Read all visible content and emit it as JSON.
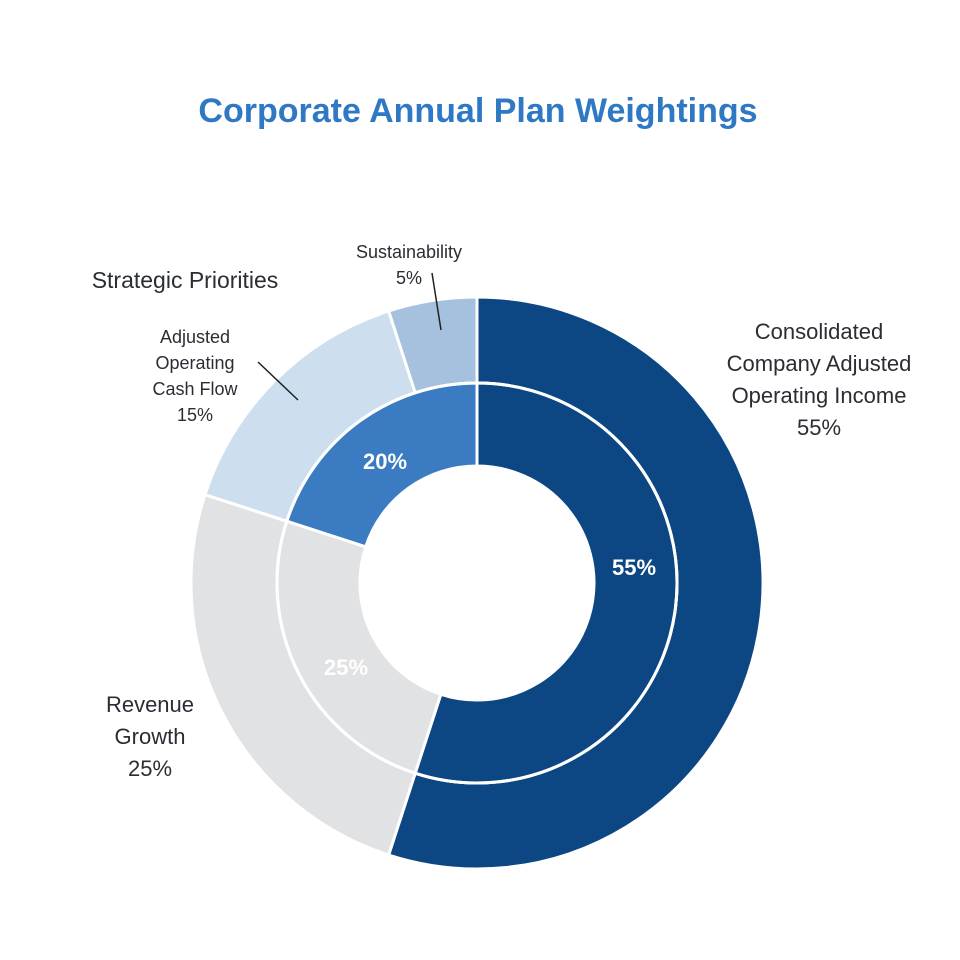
{
  "chart_data": {
    "type": "pie",
    "title": "Corporate Annual Plan Weightings",
    "group_label": "Strategic Priorities",
    "outer_ring": [
      {
        "name": "Consolidated Company Adjusted Operating Income",
        "label_lines": [
          "Consolidated",
          "Company Adjusted",
          "Operating Income"
        ],
        "value": 55,
        "value_label": "55%",
        "color": "#0c4784"
      },
      {
        "name": "Revenue Growth",
        "label_lines": [
          "Revenue",
          "Growth"
        ],
        "value": 25,
        "value_label": "25%",
        "color": "#e1e2e4"
      },
      {
        "name": "Adjusted Operating Cash Flow",
        "label_lines": [
          "Adjusted",
          "Operating",
          "Cash Flow"
        ],
        "value": 15,
        "value_label": "15%",
        "color": "#cddeee"
      },
      {
        "name": "Sustainability",
        "label_lines": [
          "Sustainability"
        ],
        "value": 5,
        "value_label": "5%",
        "color": "#a5c1dd"
      }
    ],
    "inner_ring": [
      {
        "value": 55,
        "value_label": "55%",
        "color": "#0c4784"
      },
      {
        "value": 25,
        "value_label": "25%",
        "color": "#e1e2e4"
      },
      {
        "value": 20,
        "value_label": "20%",
        "color": "#3a7bc1"
      }
    ]
  }
}
